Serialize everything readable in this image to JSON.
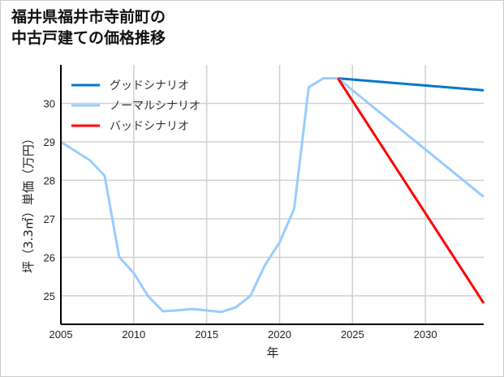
{
  "chart_data": {
    "type": "line",
    "title_lines": [
      "福井県福井市寺前町の",
      "中古戸建ての価格推移"
    ],
    "xlabel": "年",
    "ylabel": "坪（3.3㎡）単価（万円）",
    "xlim": [
      2005,
      2034
    ],
    "ylim": [
      24.26,
      31.0
    ],
    "xticks": [
      2005,
      2010,
      2015,
      2020,
      2025,
      2030
    ],
    "yticks": [
      25,
      26,
      27,
      28,
      29,
      30
    ],
    "grid": true,
    "legend_position": "top-left",
    "series": [
      {
        "name": "グッドシナリオ",
        "color": "#0077cc",
        "x": [
          2024,
          2034
        ],
        "y": [
          30.65,
          30.34
        ]
      },
      {
        "name": "ノーマルシナリオ",
        "color": "#99ccff",
        "x": [
          2005,
          2006,
          2007,
          2008,
          2009,
          2010,
          2011,
          2012,
          2013,
          2014,
          2015,
          2016,
          2017,
          2018,
          2019,
          2020,
          2021,
          2022,
          2023,
          2024,
          2034
        ],
        "y": [
          29.0,
          28.76,
          28.52,
          28.12,
          26.01,
          25.59,
          24.98,
          24.6,
          24.62,
          24.66,
          24.62,
          24.58,
          24.7,
          25.0,
          25.8,
          26.39,
          27.26,
          30.42,
          30.65,
          30.65,
          27.57
        ]
      },
      {
        "name": "バッドシナリオ",
        "color": "#ff0000",
        "x": [
          2024,
          2034
        ],
        "y": [
          30.65,
          24.81
        ]
      }
    ]
  }
}
